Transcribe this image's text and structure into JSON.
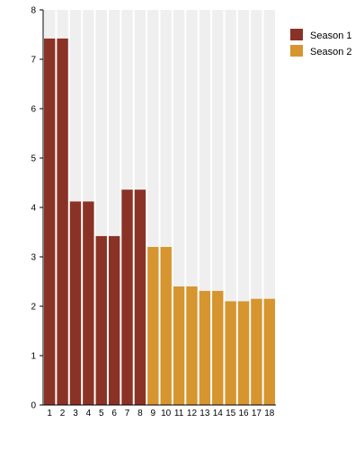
{
  "chart_data": {
    "type": "bar",
    "categories": [
      "1",
      "2",
      "3",
      "4",
      "5",
      "6",
      "7",
      "8",
      "9",
      "10",
      "11",
      "12",
      "13",
      "14",
      "15",
      "16",
      "17",
      "18"
    ],
    "values": [
      7.42,
      7.42,
      4.12,
      4.12,
      3.42,
      3.42,
      4.36,
      4.36,
      3.2,
      3.2,
      2.4,
      2.4,
      2.31,
      2.31,
      2.1,
      2.1,
      2.15,
      2.15
    ],
    "season_of_bar": [
      1,
      1,
      1,
      1,
      1,
      1,
      1,
      1,
      2,
      2,
      2,
      2,
      2,
      2,
      2,
      2,
      2,
      2
    ],
    "series": [
      {
        "name": "Season 1",
        "color": "#8b3226"
      },
      {
        "name": "Season 2",
        "color": "#d6952f"
      }
    ],
    "title": "",
    "xlabel": "",
    "ylabel": "",
    "ylim": [
      0,
      8
    ],
    "yticks": [
      "0",
      "1",
      "2",
      "3",
      "4",
      "5",
      "6",
      "7",
      "8"
    ],
    "grid": "vertical stripes",
    "background_stripe_color": "#efefef",
    "legend_position": "top-right"
  }
}
